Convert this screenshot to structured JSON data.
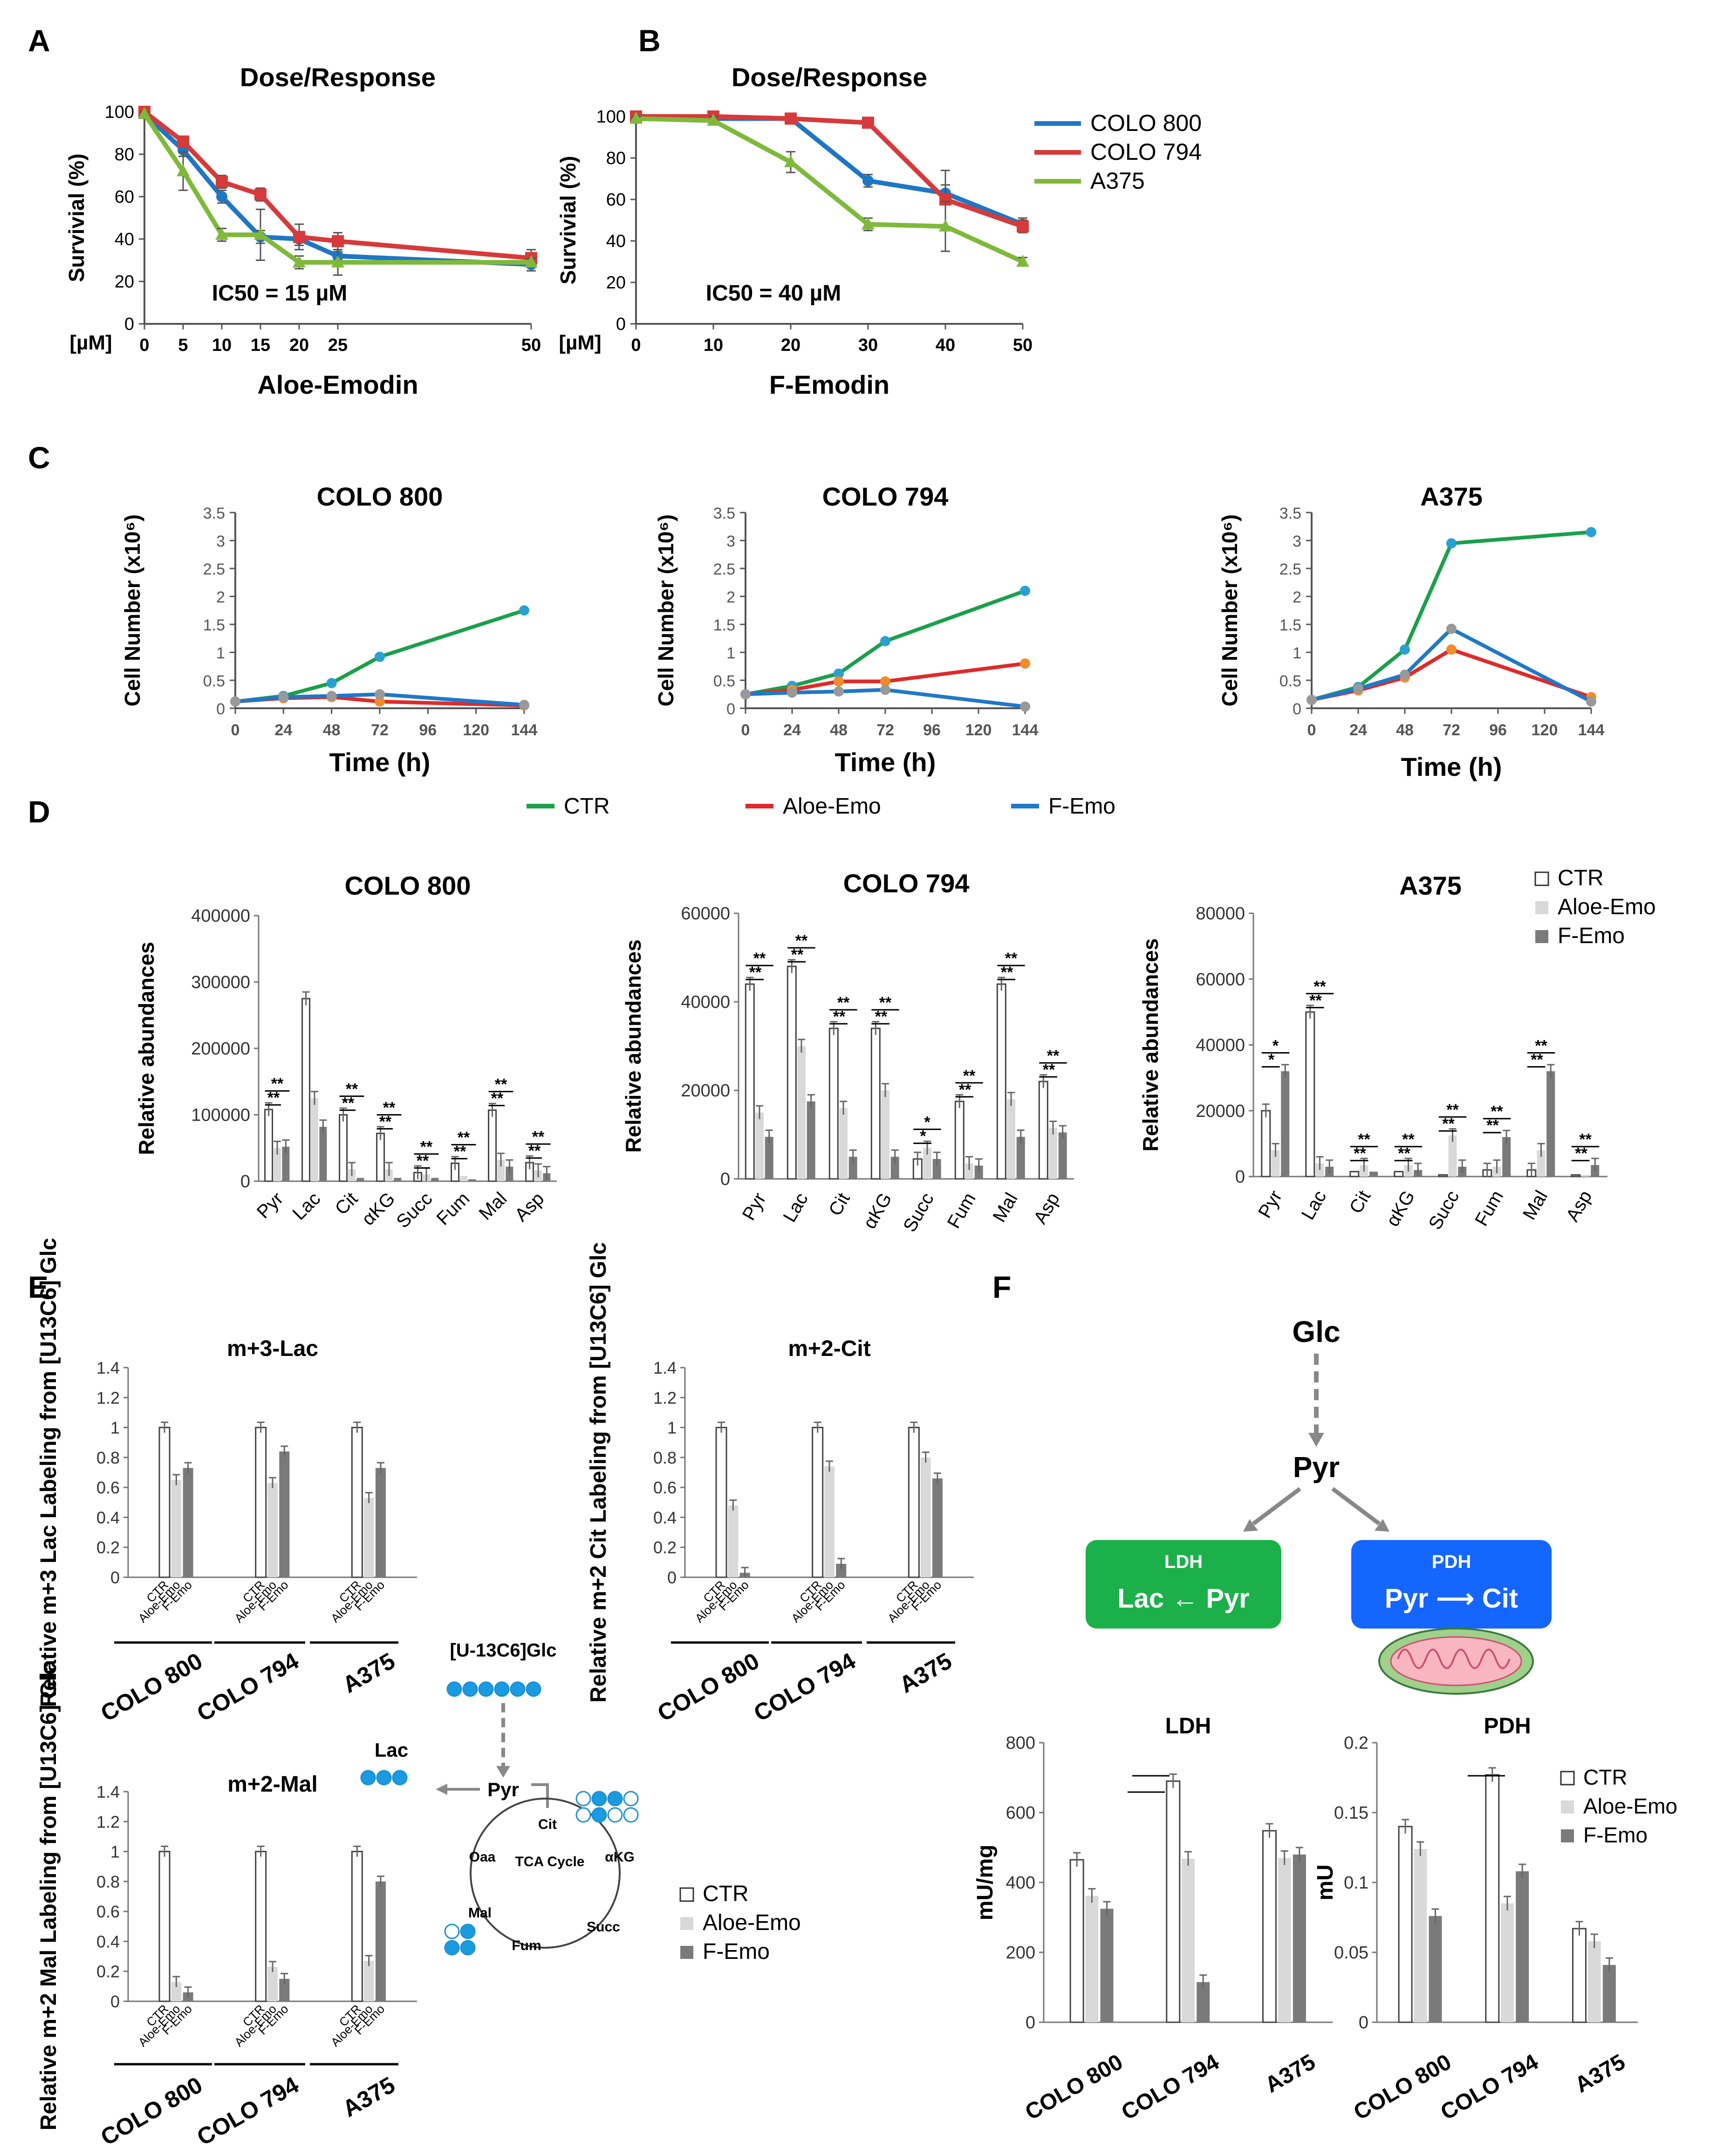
{
  "colors": {
    "colo800": "#1f77c4",
    "colo794": "#d63a3a",
    "a375": "#7fb93c",
    "ctr": "#1aa04a",
    "aloe": "#e02a2a",
    "femo": "#1f78c8",
    "white": "#ffffff",
    "light": "#d9d9d9",
    "dark": "#7a7a7a",
    "ldh": "#1cb04a",
    "pdh": "#1565ff"
  },
  "panel_letters": [
    "A",
    "B",
    "C",
    "D",
    "E",
    "F"
  ],
  "legend_AB": [
    "COLO 800",
    "COLO 794",
    "A375"
  ],
  "legend_C": [
    "CTR",
    "Aloe-Emo",
    "F-Emo"
  ],
  "legend_bars": [
    "CTR",
    "Aloe-Emo",
    "F-Emo"
  ],
  "ic50_A": "IC50 = 15 µM",
  "ic50_B": "IC50 = 40 µM",
  "um_label": "[µM]",
  "pathway": {
    "glc": "Glc",
    "pyr": "Pyr",
    "ldh": "LDH",
    "pdh": "PDH",
    "ldh_rxn": "Lac ← Pyr",
    "pdh_rxn": "Pyr ⟶ Cit",
    "tracer": "[U-13C6]Glc",
    "lac": "Lac",
    "cit": "Cit",
    "akg": "αKG",
    "succ": "Succ",
    "fum": "Fum",
    "mal": "Mal",
    "oaa": "Oaa",
    "tca": "TCA Cycle"
  },
  "chart_data": [
    {
      "id": "A",
      "type": "line",
      "title": "Dose/Response",
      "xlabel": "Aloe-Emodin",
      "ylabel": "Survivial (%)",
      "ylim": [
        0,
        100
      ],
      "yticks": [
        0,
        20,
        40,
        60,
        80,
        100
      ],
      "xticks": [
        0,
        5,
        10,
        15,
        20,
        25,
        50
      ],
      "series": [
        {
          "name": "COLO 800",
          "x": [
            0,
            5,
            10,
            15,
            20,
            25,
            50
          ],
          "values": [
            99,
            82,
            60,
            41,
            40,
            32,
            28
          ],
          "err": [
            2,
            3,
            3,
            3,
            3,
            2,
            3
          ]
        },
        {
          "name": "COLO 794",
          "x": [
            0,
            5,
            10,
            15,
            20,
            25,
            50
          ],
          "values": [
            100,
            86,
            67,
            61,
            41,
            39,
            31
          ],
          "err": [
            1,
            2,
            3,
            3,
            6,
            4,
            4
          ]
        },
        {
          "name": "A375",
          "x": [
            0,
            5,
            10,
            15,
            20,
            25,
            50
          ],
          "values": [
            99,
            72,
            42,
            42,
            29,
            29,
            29
          ],
          "err": [
            1,
            9,
            3,
            12,
            3,
            6,
            2
          ]
        }
      ]
    },
    {
      "id": "B",
      "type": "line",
      "title": "Dose/Response",
      "xlabel": "F-Emodin",
      "ylabel": "Survivial (%)",
      "ylim": [
        0,
        100
      ],
      "yticks": [
        0,
        20,
        40,
        60,
        80,
        100
      ],
      "xticks": [
        0,
        10,
        20,
        30,
        40,
        50
      ],
      "series": [
        {
          "name": "COLO 800",
          "x": [
            0,
            10,
            20,
            30,
            40,
            50
          ],
          "values": [
            99,
            99,
            99,
            69,
            63,
            48
          ],
          "err": [
            2,
            1,
            1,
            3,
            4,
            3
          ]
        },
        {
          "name": "COLO 794",
          "x": [
            0,
            10,
            20,
            30,
            40,
            50
          ],
          "values": [
            100,
            100,
            99,
            97,
            60,
            47
          ],
          "err": [
            1,
            1,
            1,
            1,
            14,
            3
          ]
        },
        {
          "name": "A375",
          "x": [
            0,
            10,
            20,
            30,
            40,
            50
          ],
          "values": [
            99,
            98,
            78,
            48,
            47,
            30
          ],
          "err": [
            1,
            2,
            5,
            3,
            12,
            2
          ]
        }
      ]
    },
    {
      "id": "C1",
      "type": "line",
      "title": "COLO 800",
      "xlabel": "Time (h)",
      "ylabel": "Cell Number (x10⁶)",
      "ylim": [
        0,
        3.5
      ],
      "yticks": [
        0,
        0.5,
        1,
        1.5,
        2,
        2.5,
        3,
        3.5
      ],
      "xticks": [
        0,
        24,
        48,
        72,
        96,
        120,
        144
      ],
      "series": [
        {
          "name": "CTR",
          "x": [
            0,
            24,
            48,
            72,
            144
          ],
          "values": [
            0.12,
            0.22,
            0.45,
            0.92,
            1.75
          ]
        },
        {
          "name": "Aloe-Emo",
          "x": [
            0,
            24,
            48,
            72,
            144
          ],
          "values": [
            0.12,
            0.18,
            0.2,
            0.12,
            0.05
          ]
        },
        {
          "name": "F-Emo",
          "x": [
            0,
            24,
            48,
            72,
            144
          ],
          "values": [
            0.12,
            0.2,
            0.22,
            0.25,
            0.06
          ]
        }
      ]
    },
    {
      "id": "C2",
      "type": "line",
      "title": "COLO 794",
      "xlabel": "Time (h)",
      "ylabel": "Cell Number (x10⁶)",
      "ylim": [
        0,
        3.5
      ],
      "yticks": [
        0,
        0.5,
        1,
        1.5,
        2,
        2.5,
        3,
        3.5
      ],
      "xticks": [
        0,
        24,
        48,
        72,
        96,
        120,
        144
      ],
      "series": [
        {
          "name": "CTR",
          "x": [
            0,
            24,
            48,
            72,
            144
          ],
          "values": [
            0.25,
            0.4,
            0.62,
            1.2,
            2.1
          ]
        },
        {
          "name": "Aloe-Emo",
          "x": [
            0,
            24,
            48,
            72,
            144
          ],
          "values": [
            0.25,
            0.33,
            0.48,
            0.48,
            0.8
          ]
        },
        {
          "name": "F-Emo",
          "x": [
            0,
            24,
            48,
            72,
            144
          ],
          "values": [
            0.25,
            0.28,
            0.3,
            0.33,
            0.03
          ]
        }
      ]
    },
    {
      "id": "C3",
      "type": "line",
      "title": "A375",
      "xlabel": "Time (h)",
      "ylabel": "Cell Number (x10⁶)",
      "ylim": [
        0,
        3.5
      ],
      "yticks": [
        0,
        0.5,
        1,
        1.5,
        2,
        2.5,
        3,
        3.5
      ],
      "xticks": [
        0,
        24,
        48,
        72,
        96,
        120,
        144
      ],
      "series": [
        {
          "name": "CTR",
          "x": [
            0,
            24,
            48,
            72,
            144
          ],
          "values": [
            0.15,
            0.38,
            1.05,
            2.95,
            3.15
          ]
        },
        {
          "name": "Aloe-Emo",
          "x": [
            0,
            24,
            48,
            72,
            144
          ],
          "values": [
            0.15,
            0.32,
            0.55,
            1.05,
            0.2
          ]
        },
        {
          "name": "F-Emo",
          "x": [
            0,
            24,
            48,
            72,
            144
          ],
          "values": [
            0.15,
            0.35,
            0.6,
            1.42,
            0.12
          ]
        }
      ]
    },
    {
      "id": "D1",
      "type": "bar",
      "title": "COLO 800",
      "ylabel": "Relative abundances",
      "ylim": [
        0,
        400000
      ],
      "yticks": [
        0,
        100000,
        200000,
        300000,
        400000
      ],
      "categories": [
        "Pyr",
        "Lac",
        "Cit",
        "αKG",
        "Succ",
        "Fum",
        "Mal",
        "Asp"
      ],
      "sig": [
        "**",
        "",
        "**",
        "**",
        "**",
        "**",
        "**",
        "**"
      ],
      "series": [
        {
          "name": "CTR",
          "values": [
            108000,
            275000,
            100000,
            72000,
            13000,
            27000,
            107000,
            28000
          ]
        },
        {
          "name": "Aloe-Emo",
          "values": [
            50000,
            125000,
            18000,
            18000,
            10000,
            8000,
            32000,
            16000
          ]
        },
        {
          "name": "F-Emo",
          "values": [
            52000,
            82000,
            5000,
            5000,
            5000,
            3000,
            22000,
            12000
          ]
        }
      ]
    },
    {
      "id": "D2",
      "type": "bar",
      "title": "COLO 794",
      "ylabel": "Relative abundances",
      "ylim": [
        0,
        60000
      ],
      "yticks": [
        0,
        20000,
        40000,
        60000
      ],
      "categories": [
        "Pyr",
        "Lac",
        "Cit",
        "αKG",
        "Succ",
        "Fum",
        "Mal",
        "Asp"
      ],
      "sig": [
        "**",
        "**",
        "**",
        "**",
        "*",
        "**",
        "**",
        "**"
      ],
      "series": [
        {
          "name": "CTR",
          "values": [
            44000,
            48000,
            34000,
            34000,
            4500,
            17500,
            44000,
            22000
          ]
        },
        {
          "name": "Aloe-Emo",
          "values": [
            15000,
            30000,
            16000,
            20000,
            7000,
            3500,
            18000,
            11500
          ]
        },
        {
          "name": "F-Emo",
          "values": [
            9500,
            17500,
            5000,
            5000,
            4500,
            3000,
            9500,
            10500
          ]
        }
      ]
    },
    {
      "id": "D3",
      "type": "bar",
      "title": "A375",
      "ylabel": "Relative abundances",
      "ylim": [
        0,
        80000
      ],
      "yticks": [
        0,
        20000,
        40000,
        60000,
        80000
      ],
      "categories": [
        "Pyr",
        "Lac",
        "Cit",
        "αKG",
        "Succ",
        "Fum",
        "Mal",
        "Asp"
      ],
      "sig": [
        "*",
        "**",
        "**",
        "**",
        "**",
        "**",
        "**",
        "**"
      ],
      "series": [
        {
          "name": "CTR",
          "values": [
            20000,
            50000,
            1500,
            1500,
            500,
            2000,
            2000,
            500
          ]
        },
        {
          "name": "Aloe-Emo",
          "values": [
            8000,
            4000,
            3500,
            3500,
            12500,
            3000,
            8000,
            500
          ]
        },
        {
          "name": "F-Emo",
          "values": [
            32000,
            3000,
            1500,
            2000,
            3000,
            12000,
            32000,
            3500
          ]
        }
      ]
    },
    {
      "id": "E1",
      "type": "bar",
      "title": "m+3-Lac",
      "ylabel": "Relative m+3 Lac Labeling from [U13C6] Glc",
      "ylim": [
        0,
        1.4
      ],
      "yticks": [
        0,
        0.2,
        0.4,
        0.6,
        0.8,
        1,
        1.2,
        1.4
      ],
      "categories": [
        "COLO 800",
        "COLO 794",
        "A375"
      ],
      "bar_labels": [
        "CTR",
        "Aloe-Emo",
        "F-Emo"
      ],
      "series": [
        {
          "name": "CTR",
          "values": [
            1.0,
            1.0,
            1.0
          ]
        },
        {
          "name": "Aloe-Emo",
          "values": [
            0.65,
            0.63,
            0.53
          ]
        },
        {
          "name": "F-Emo",
          "values": [
            0.73,
            0.84,
            0.73
          ]
        }
      ]
    },
    {
      "id": "E2",
      "type": "bar",
      "title": "m+2-Cit",
      "ylabel": "Relative m+2 Cit Labeling from [U13C6] Glc",
      "ylim": [
        0,
        1.4
      ],
      "yticks": [
        0,
        0.2,
        0.4,
        0.6,
        0.8,
        1,
        1.2,
        1.4
      ],
      "categories": [
        "COLO 800",
        "COLO 794",
        "A375"
      ],
      "bar_labels": [
        "CTR",
        "Aloe-Emo",
        "F-Emo"
      ],
      "series": [
        {
          "name": "CTR",
          "values": [
            1.0,
            1.0,
            1.0
          ]
        },
        {
          "name": "Aloe-Emo",
          "values": [
            0.48,
            0.74,
            0.8
          ]
        },
        {
          "name": "F-Emo",
          "values": [
            0.03,
            0.09,
            0.66
          ]
        }
      ]
    },
    {
      "id": "E3",
      "type": "bar",
      "title": "m+2-Mal",
      "ylabel": "Relative m+2 Mal Labeling from [U13C6] Glc",
      "ylim": [
        0,
        1.4
      ],
      "yticks": [
        0,
        0.2,
        0.4,
        0.6,
        0.8,
        1,
        1.2,
        1.4
      ],
      "categories": [
        "COLO 800",
        "COLO 794",
        "A375"
      ],
      "bar_labels": [
        "CTR",
        "Aloe-Emo",
        "F-Emo"
      ],
      "series": [
        {
          "name": "CTR",
          "values": [
            1.0,
            1.0,
            1.0
          ]
        },
        {
          "name": "Aloe-Emo",
          "values": [
            0.13,
            0.23,
            0.27
          ]
        },
        {
          "name": "F-Emo",
          "values": [
            0.06,
            0.15,
            0.8
          ]
        }
      ]
    },
    {
      "id": "F1",
      "type": "bar",
      "title": "LDH",
      "ylabel": "mU/mg",
      "ylim": [
        0,
        800
      ],
      "yticks": [
        0,
        200,
        400,
        600,
        800
      ],
      "categories": [
        "COLO 800",
        "COLO 794",
        "A375"
      ],
      "series": [
        {
          "name": "CTR",
          "values": [
            465,
            690,
            548
          ]
        },
        {
          "name": "Aloe-Emo",
          "values": [
            362,
            468,
            470
          ]
        },
        {
          "name": "F-Emo",
          "values": [
            325,
            115,
            480
          ]
        }
      ]
    },
    {
      "id": "F2",
      "type": "bar",
      "title": "PDH",
      "ylabel": "mU",
      "ylim": [
        0,
        0.2
      ],
      "yticks": [
        0,
        0.05,
        0.1,
        0.15,
        0.2
      ],
      "categories": [
        "COLO 800",
        "COLO 794",
        "A375"
      ],
      "series": [
        {
          "name": "CTR",
          "values": [
            0.14,
            0.177,
            0.067
          ]
        },
        {
          "name": "Aloe-Emo",
          "values": [
            0.124,
            0.085,
            0.058
          ]
        },
        {
          "name": "F-Emo",
          "values": [
            0.076,
            0.108,
            0.041
          ]
        }
      ]
    }
  ]
}
